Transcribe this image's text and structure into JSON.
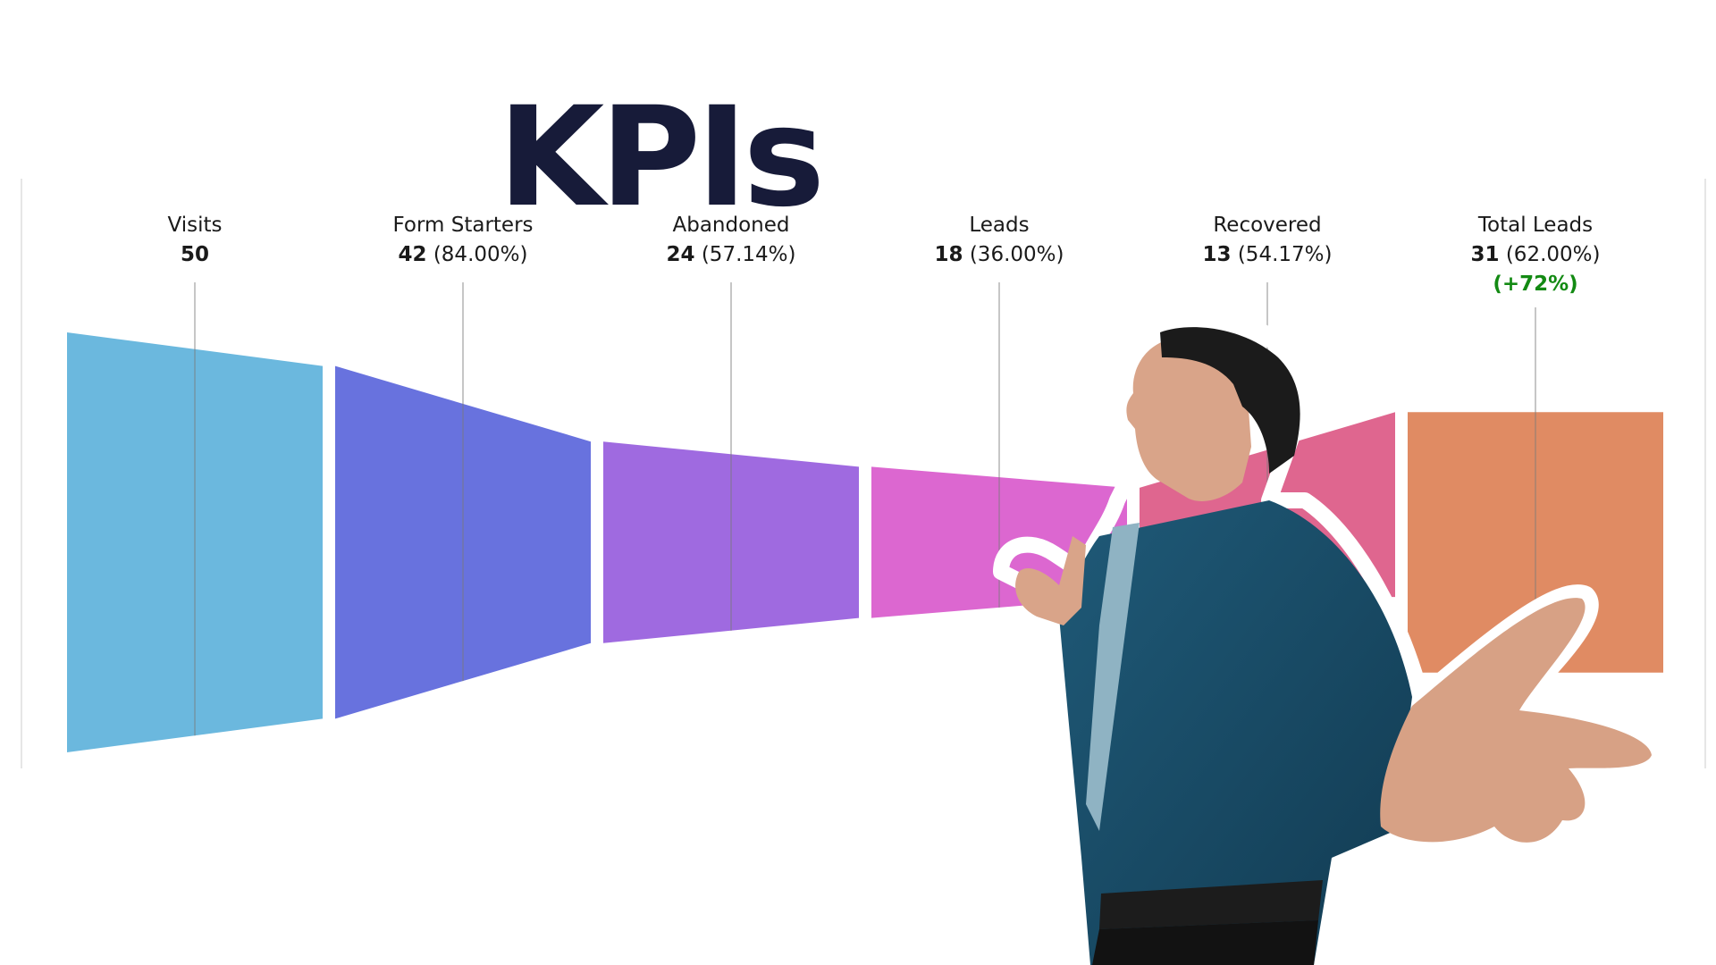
{
  "chart_data": {
    "type": "funnel",
    "title": "KPIs",
    "stages": [
      {
        "name": "Visits",
        "value": 50,
        "pct": "",
        "color": "#6bb8de"
      },
      {
        "name": "Form Starters",
        "value": 42,
        "pct": "(84.00%)",
        "color": "#6872de"
      },
      {
        "name": "Abandoned",
        "value": 24,
        "pct": "(57.14%)",
        "color": "#9f6ae0"
      },
      {
        "name": "Leads",
        "value": 18,
        "pct": "(36.00%)",
        "color": "#dc67d0"
      },
      {
        "name": "Recovered",
        "value": 13,
        "pct": "(54.17%)",
        "color": "#df668f"
      },
      {
        "name": "Total Leads",
        "value": 31,
        "pct": "(62.00%)",
        "delta": "(+72%)",
        "color": "#e08b63"
      }
    ]
  },
  "colors": {
    "title": "#171b39",
    "delta": "#138a13",
    "divider": "#7a7a7a",
    "frame": "#e6e6e6"
  },
  "photo": {
    "icon": "businessman-shrugging-icon"
  }
}
